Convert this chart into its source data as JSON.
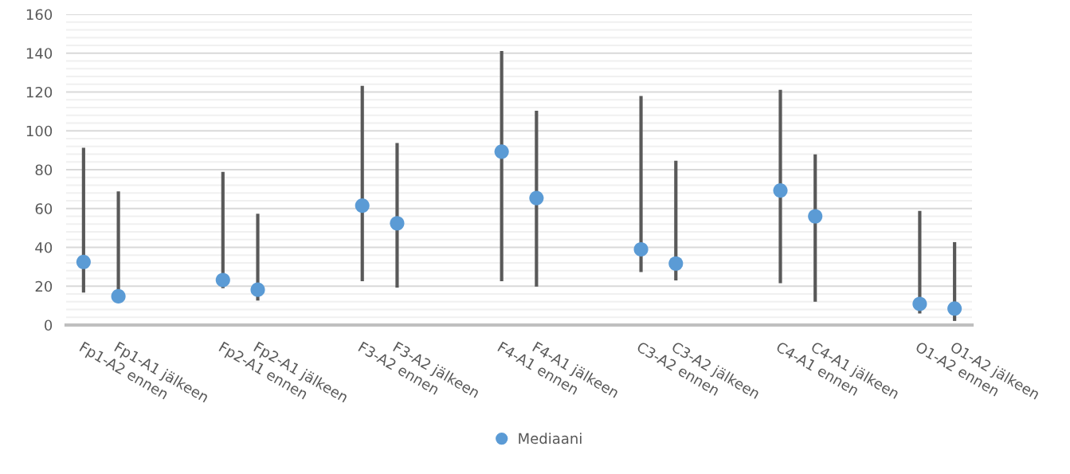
{
  "chart_data": {
    "type": "scatter",
    "categories": [
      "Fp1-A2 ennen",
      "Fp1-A1 jälkeen",
      null,
      null,
      "Fp2-A1 ennen",
      "Fp2-A1 jälkeen",
      null,
      null,
      "F3-A2 ennen",
      "F3-A2 jälkeen",
      null,
      null,
      "F4-A1 ennen",
      "F4-A1 jälkeen",
      null,
      null,
      "C3-A2 ennen",
      "C3-A2 jälkeen",
      null,
      null,
      "C4-A1 ennen",
      "C4-A1 jälkeen",
      null,
      null,
      "O1-A2 ennen",
      "O1-A2 jälkeen"
    ],
    "series": [
      {
        "name": "Mediaani",
        "color": "#5b9bd5",
        "values": [
          32.5,
          14.8,
          null,
          null,
          23.2,
          18.2,
          null,
          null,
          61.5,
          52.4,
          null,
          null,
          89.3,
          65.4,
          null,
          null,
          39.0,
          31.7,
          null,
          null,
          69.3,
          56.0,
          null,
          null,
          10.9,
          8.5
        ],
        "errors": [
          [
            16.7,
            91.3
          ],
          [
            14.8,
            68.8
          ],
          null,
          null,
          [
            19.0,
            78.9
          ],
          [
            12.6,
            57.3
          ],
          null,
          null,
          [
            22.6,
            123.2
          ],
          [
            19.3,
            93.7
          ],
          null,
          null,
          [
            22.6,
            141.1
          ],
          [
            19.8,
            110.4
          ],
          null,
          null,
          [
            27.3,
            118.0
          ],
          [
            23.0,
            84.6
          ],
          null,
          null,
          [
            21.5,
            121.1
          ],
          [
            12.0,
            87.9
          ],
          null,
          null,
          [
            5.9,
            58.8
          ],
          [
            2.1,
            42.7
          ]
        ]
      }
    ],
    "ylim": [
      0,
      160
    ],
    "yticks": [
      0,
      20,
      40,
      60,
      80,
      100,
      120,
      140,
      160
    ],
    "grid": "y",
    "legend": "bottom",
    "marker": "circle"
  }
}
